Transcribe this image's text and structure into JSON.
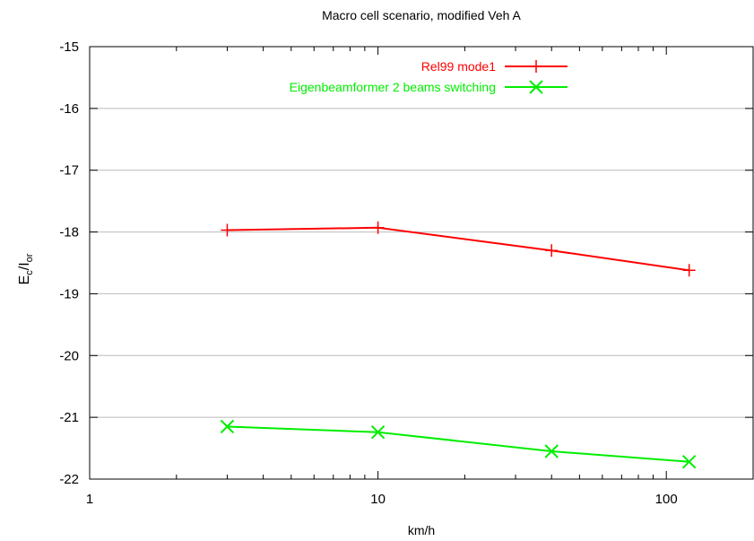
{
  "chart_data": {
    "type": "line",
    "title": "Macro cell scenario, modified Veh A",
    "xlabel": "km/h",
    "ylabel_main": "E",
    "ylabel_sub1": "c",
    "ylabel_mid": "/I",
    "ylabel_sub2": "or",
    "x_scale": "log",
    "xlim": [
      1,
      200
    ],
    "ylim": [
      -22,
      -15
    ],
    "x_ticks": [
      1,
      10,
      100
    ],
    "x_tick_labels": [
      "1",
      "10",
      "100"
    ],
    "y_ticks": [
      -22,
      -21,
      -20,
      -19,
      -18,
      -17,
      -16,
      -15
    ],
    "y_tick_labels": [
      "-22",
      "-21",
      "-20",
      "-19",
      "-18",
      "-17",
      "-16",
      "-15"
    ],
    "grid": "horizontal",
    "legend_position": "top-right",
    "series": [
      {
        "name": "Rel99 mode1",
        "color": "#ff0000",
        "marker": "plus",
        "x": [
          3,
          10,
          40,
          120
        ],
        "y": [
          -17.97,
          -17.93,
          -18.3,
          -18.62
        ]
      },
      {
        "name": "Eigenbeamformer 2 beams switching",
        "color": "#00ee00",
        "marker": "cross",
        "x": [
          3,
          10,
          40,
          120
        ],
        "y": [
          -21.15,
          -21.24,
          -21.55,
          -21.72
        ]
      }
    ]
  }
}
